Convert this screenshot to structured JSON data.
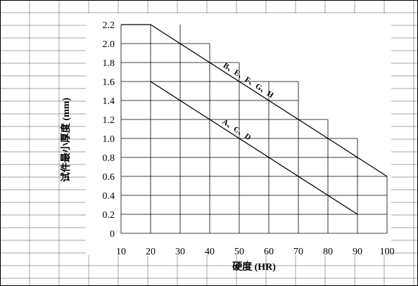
{
  "chart_data": {
    "type": "line",
    "title": "",
    "xlabel": "硬度 (HR)",
    "ylabel": "试件最小厚度 (mm)",
    "xlim": [
      10,
      100
    ],
    "ylim": [
      0,
      2.2
    ],
    "x_ticks": [
      10,
      20,
      30,
      40,
      50,
      60,
      70,
      80,
      90,
      100
    ],
    "y_ticks": [
      0,
      0.2,
      0.4,
      0.6,
      0.8,
      1.0,
      1.2,
      1.4,
      1.6,
      1.8,
      2.0,
      2.2
    ],
    "x_tick_labels": [
      "10",
      "20",
      "30",
      "40",
      "50",
      "60",
      "70",
      "80",
      "90",
      "100"
    ],
    "y_tick_labels": [
      "0",
      "0.2",
      "0.4",
      "0.6",
      "0.8",
      "1.0",
      "1.2",
      "1.4",
      "1.6",
      "1.8",
      "2.0",
      "2.2"
    ],
    "grid": true,
    "series": [
      {
        "name": "B、E、F、G、H",
        "x": [
          10,
          20,
          100
        ],
        "y": [
          2.2,
          2.2,
          0.6
        ]
      },
      {
        "name": "A、C、D",
        "x": [
          20,
          90
        ],
        "y": [
          1.6,
          0.2
        ]
      }
    ],
    "color": "#000000"
  }
}
